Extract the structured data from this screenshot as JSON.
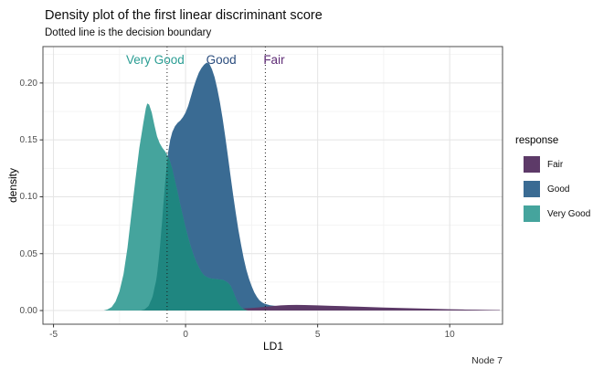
{
  "title": "Density plot of the first linear discriminant score",
  "subtitle": "Dotted line is the decision boundary",
  "caption": "Node 7",
  "legend": {
    "title": "response",
    "entries": [
      {
        "label": "Fair",
        "color": "#5d3a68"
      },
      {
        "label": "Good",
        "color": "#3a6b93"
      },
      {
        "label": "Very Good",
        "color": "#45a49d"
      }
    ]
  },
  "chart_data": {
    "type": "area",
    "subtype": "density",
    "title": "Density plot of the first linear discriminant score",
    "xlabel": "LD1",
    "ylabel": "density",
    "xlim": [
      -5.4,
      12.0
    ],
    "ylim": [
      -0.012,
      0.232
    ],
    "x_ticks": [
      -5,
      0,
      5,
      10
    ],
    "x_tick_labels": [
      "-5",
      "0",
      "5",
      "10"
    ],
    "x_minor_ticks": [
      -2.5,
      2.5,
      7.5
    ],
    "y_ticks": [
      0,
      0.05,
      0.1,
      0.15,
      0.2
    ],
    "y_tick_labels": [
      "0.00",
      "0.05",
      "0.10",
      "0.15",
      "0.20"
    ],
    "y_minor_ticks": [
      0.025,
      0.075,
      0.125,
      0.175,
      0.225
    ],
    "grid": true,
    "legend_position": "right",
    "decision_boundaries": [
      -0.7,
      3.02
    ],
    "boundary_line_style": "dotted",
    "annotations": [
      {
        "text": "Very Good",
        "x": -1.15,
        "y": 0.2205,
        "color": "#2a9d93"
      },
      {
        "text": "Good",
        "x": 1.35,
        "y": 0.2205,
        "color": "#2b4d7e"
      },
      {
        "text": "Fair",
        "x": 3.35,
        "y": 0.2205,
        "color": "#5e2b75"
      }
    ],
    "draw_order": [
      "Good",
      "Fair",
      "Very Good"
    ],
    "overlap_pair": [
      "Very Good",
      "Good"
    ],
    "overlap_color": "#1f8680",
    "series": [
      {
        "name": "Fair",
        "color": "#5d3a68",
        "points": [
          [
            -1.2,
            0
          ],
          [
            -0.5,
            0.0004
          ],
          [
            0.5,
            0.0008
          ],
          [
            1.5,
            0.0013
          ],
          [
            2.2,
            0.0018
          ],
          [
            2.6,
            0.0024
          ],
          [
            3.0,
            0.0032
          ],
          [
            3.3,
            0.004
          ],
          [
            3.6,
            0.0046
          ],
          [
            3.9,
            0.0049
          ],
          [
            4.2,
            0.005
          ],
          [
            4.5,
            0.0049
          ],
          [
            5.0,
            0.0046
          ],
          [
            5.5,
            0.0042
          ],
          [
            6.0,
            0.0038
          ],
          [
            6.5,
            0.0034
          ],
          [
            7.0,
            0.003
          ],
          [
            7.5,
            0.0026
          ],
          [
            8.0,
            0.0023
          ],
          [
            8.5,
            0.002
          ],
          [
            9.0,
            0.0017
          ],
          [
            9.5,
            0.0014
          ],
          [
            10.0,
            0.0011
          ],
          [
            10.5,
            0.0009
          ],
          [
            11.0,
            0.0007
          ],
          [
            11.5,
            0.0005
          ],
          [
            11.9,
            0.0004
          ]
        ]
      },
      {
        "name": "Good",
        "color": "#3a6b93",
        "points": [
          [
            -1.7,
            0
          ],
          [
            -1.55,
            0.001
          ],
          [
            -1.4,
            0.004
          ],
          [
            -1.25,
            0.012
          ],
          [
            -1.1,
            0.028
          ],
          [
            -1.0,
            0.048
          ],
          [
            -0.9,
            0.075
          ],
          [
            -0.8,
            0.105
          ],
          [
            -0.72,
            0.126
          ],
          [
            -0.66,
            0.139
          ],
          [
            -0.58,
            0.15
          ],
          [
            -0.5,
            0.157
          ],
          [
            -0.4,
            0.162
          ],
          [
            -0.3,
            0.165
          ],
          [
            -0.2,
            0.167
          ],
          [
            -0.1,
            0.17
          ],
          [
            0,
            0.174
          ],
          [
            0.1,
            0.18
          ],
          [
            0.2,
            0.188
          ],
          [
            0.3,
            0.196
          ],
          [
            0.4,
            0.203
          ],
          [
            0.5,
            0.209
          ],
          [
            0.6,
            0.213
          ],
          [
            0.7,
            0.216
          ],
          [
            0.8,
            0.218
          ],
          [
            0.9,
            0.217
          ],
          [
            1.0,
            0.212
          ],
          [
            1.1,
            0.205
          ],
          [
            1.2,
            0.195
          ],
          [
            1.3,
            0.183
          ],
          [
            1.4,
            0.169
          ],
          [
            1.5,
            0.153
          ],
          [
            1.6,
            0.136
          ],
          [
            1.7,
            0.119
          ],
          [
            1.8,
            0.102
          ],
          [
            1.9,
            0.086
          ],
          [
            2.0,
            0.071
          ],
          [
            2.1,
            0.058
          ],
          [
            2.2,
            0.046
          ],
          [
            2.3,
            0.036
          ],
          [
            2.4,
            0.028
          ],
          [
            2.5,
            0.0215
          ],
          [
            2.6,
            0.016
          ],
          [
            2.7,
            0.012
          ],
          [
            2.8,
            0.009
          ],
          [
            2.9,
            0.0072
          ],
          [
            3.0,
            0.006
          ],
          [
            3.2,
            0.0047
          ],
          [
            3.5,
            0.0038
          ],
          [
            4.0,
            0.003
          ],
          [
            4.5,
            0.0024
          ],
          [
            5.0,
            0.0019
          ],
          [
            5.5,
            0.0015
          ],
          [
            6.0,
            0.0011
          ],
          [
            6.5,
            0.0008
          ],
          [
            7.0,
            0.0005
          ],
          [
            7.5,
            0.0003
          ],
          [
            8.0,
            0.0001
          ],
          [
            8.5,
            0
          ]
        ]
      },
      {
        "name": "Very Good",
        "color": "#45a49d",
        "points": [
          [
            -3.1,
            0
          ],
          [
            -2.95,
            0.001
          ],
          [
            -2.8,
            0.003
          ],
          [
            -2.65,
            0.008
          ],
          [
            -2.5,
            0.017
          ],
          [
            -2.35,
            0.032
          ],
          [
            -2.2,
            0.055
          ],
          [
            -2.05,
            0.085
          ],
          [
            -1.9,
            0.115
          ],
          [
            -1.75,
            0.143
          ],
          [
            -1.6,
            0.165
          ],
          [
            -1.5,
            0.178
          ],
          [
            -1.45,
            0.182
          ],
          [
            -1.38,
            0.181
          ],
          [
            -1.28,
            0.174
          ],
          [
            -1.18,
            0.163
          ],
          [
            -1.08,
            0.153
          ],
          [
            -0.98,
            0.147
          ],
          [
            -0.88,
            0.143
          ],
          [
            -0.78,
            0.14
          ],
          [
            -0.7,
            0.137
          ],
          [
            -0.6,
            0.132
          ],
          [
            -0.5,
            0.124
          ],
          [
            -0.4,
            0.114
          ],
          [
            -0.3,
            0.104
          ],
          [
            -0.2,
            0.093
          ],
          [
            -0.1,
            0.083
          ],
          [
            0,
            0.073
          ],
          [
            0.1,
            0.064
          ],
          [
            0.2,
            0.056
          ],
          [
            0.3,
            0.049
          ],
          [
            0.4,
            0.043
          ],
          [
            0.5,
            0.038
          ],
          [
            0.6,
            0.034
          ],
          [
            0.7,
            0.031
          ],
          [
            0.8,
            0.0295
          ],
          [
            0.9,
            0.0285
          ],
          [
            1.0,
            0.028
          ],
          [
            1.2,
            0.0275
          ],
          [
            1.4,
            0.027
          ],
          [
            1.5,
            0.026
          ],
          [
            1.6,
            0.0245
          ],
          [
            1.7,
            0.022
          ],
          [
            1.8,
            0.017
          ],
          [
            1.9,
            0.011
          ],
          [
            2.0,
            0.006
          ],
          [
            2.1,
            0.003
          ],
          [
            2.2,
            0.0012
          ],
          [
            2.35,
            0
          ]
        ]
      }
    ],
    "theme": {
      "panel_border": "#4d4d4d",
      "grid_major": "#e4e4e4",
      "grid_minor": "#f1f1f1",
      "tick_color": "#333333",
      "tick_text": "#4d4d4d",
      "boundary_color": "#1a1a1a"
    }
  }
}
